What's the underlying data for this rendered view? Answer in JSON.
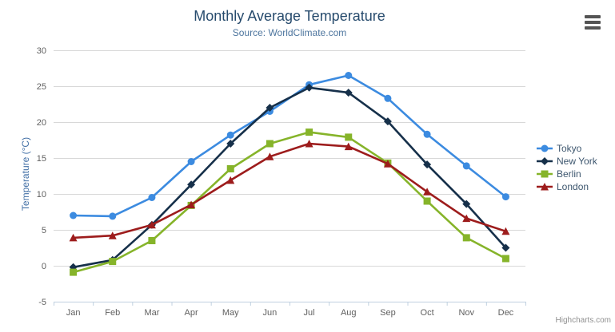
{
  "credit": "Highcharts.com",
  "export_menu": {
    "icon": "hamburger-menu-icon"
  },
  "chart_data": {
    "type": "line",
    "title": "Monthly Average Temperature",
    "subtitle": "Source: WorldClimate.com",
    "xlabel": "",
    "ylabel": "Temperature (°C)",
    "categories": [
      "Jan",
      "Feb",
      "Mar",
      "Apr",
      "May",
      "Jun",
      "Jul",
      "Aug",
      "Sep",
      "Oct",
      "Nov",
      "Dec"
    ],
    "yticks": [
      -5,
      0,
      5,
      10,
      15,
      20,
      25,
      30
    ],
    "ylim": [
      -5,
      30
    ],
    "grid": true,
    "legend_position": "right",
    "series": [
      {
        "name": "Tokyo",
        "color": "#3c8be0",
        "marker": "circle",
        "values": [
          7.0,
          6.9,
          9.5,
          14.5,
          18.2,
          21.5,
          25.2,
          26.5,
          23.3,
          18.3,
          13.9,
          9.6
        ]
      },
      {
        "name": "New York",
        "color": "#16304a",
        "marker": "diamond",
        "values": [
          -0.2,
          0.8,
          5.7,
          11.3,
          17.0,
          22.0,
          24.8,
          24.1,
          20.1,
          14.1,
          8.6,
          2.5
        ]
      },
      {
        "name": "Berlin",
        "color": "#86b42a",
        "marker": "square",
        "values": [
          -0.9,
          0.6,
          3.5,
          8.4,
          13.5,
          17.0,
          18.6,
          17.9,
          14.3,
          9.0,
          3.9,
          1.0
        ]
      },
      {
        "name": "London",
        "color": "#9d1c1c",
        "marker": "triangle",
        "values": [
          3.9,
          4.2,
          5.7,
          8.5,
          11.9,
          15.2,
          17.0,
          16.6,
          14.2,
          10.3,
          6.6,
          4.8
        ]
      }
    ]
  }
}
